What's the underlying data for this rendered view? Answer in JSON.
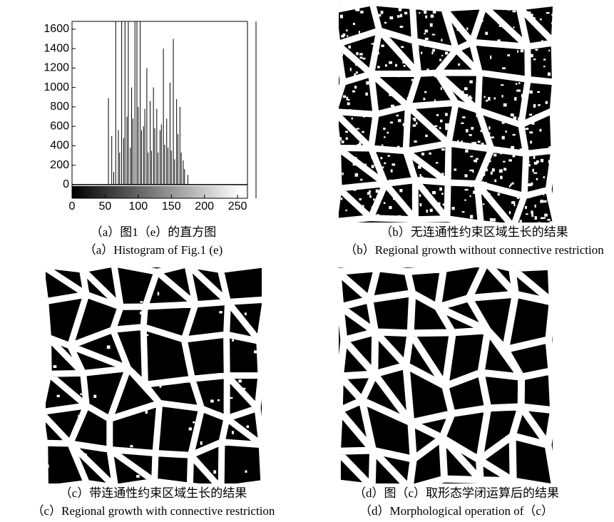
{
  "chart_data": {
    "type": "bar",
    "x": [
      55,
      60,
      63,
      66,
      70,
      72,
      75,
      78,
      80,
      83,
      85,
      88,
      90,
      92,
      95,
      98,
      100,
      103,
      105,
      108,
      110,
      113,
      115,
      118,
      120,
      123,
      125,
      128,
      130,
      133,
      135,
      138,
      140,
      143,
      145,
      148,
      150,
      153,
      155,
      158,
      160,
      163,
      165,
      168,
      170,
      175
    ],
    "values": [
      890,
      500,
      130,
      1680,
      560,
      330,
      1680,
      480,
      1680,
      700,
      1680,
      380,
      1000,
      680,
      1680,
      1680,
      800,
      1680,
      560,
      600,
      780,
      1200,
      330,
      860,
      350,
      1000,
      580,
      780,
      330,
      560,
      620,
      1400,
      410,
      680,
      380,
      1050,
      350,
      1500,
      260,
      880,
      520,
      800,
      330,
      250,
      160,
      100
    ],
    "color": "#000000",
    "xlim": [
      0,
      265
    ],
    "ylim": [
      -140,
      1680
    ],
    "xticks": [
      0,
      50,
      100,
      150,
      200,
      250
    ],
    "yticks": [
      0,
      200,
      400,
      600,
      800,
      1000,
      1200,
      1400,
      1600
    ]
  },
  "captions": [
    {
      "zh": "（a）图1（e）的直方图",
      "en": "（a）Histogram of Fig.1 (e)"
    },
    {
      "zh": "（b）无连通性约束区域生长的结果",
      "en": "（b）Regional growth without connective restriction"
    },
    {
      "zh": "（c）带连通性约束区域生长的结果",
      "en": "（c）Regional growth with connective restriction"
    },
    {
      "zh": "（d）图（c）取形态学闭运算后的结果",
      "en": "（d）Morphological operation of（c）"
    }
  ]
}
